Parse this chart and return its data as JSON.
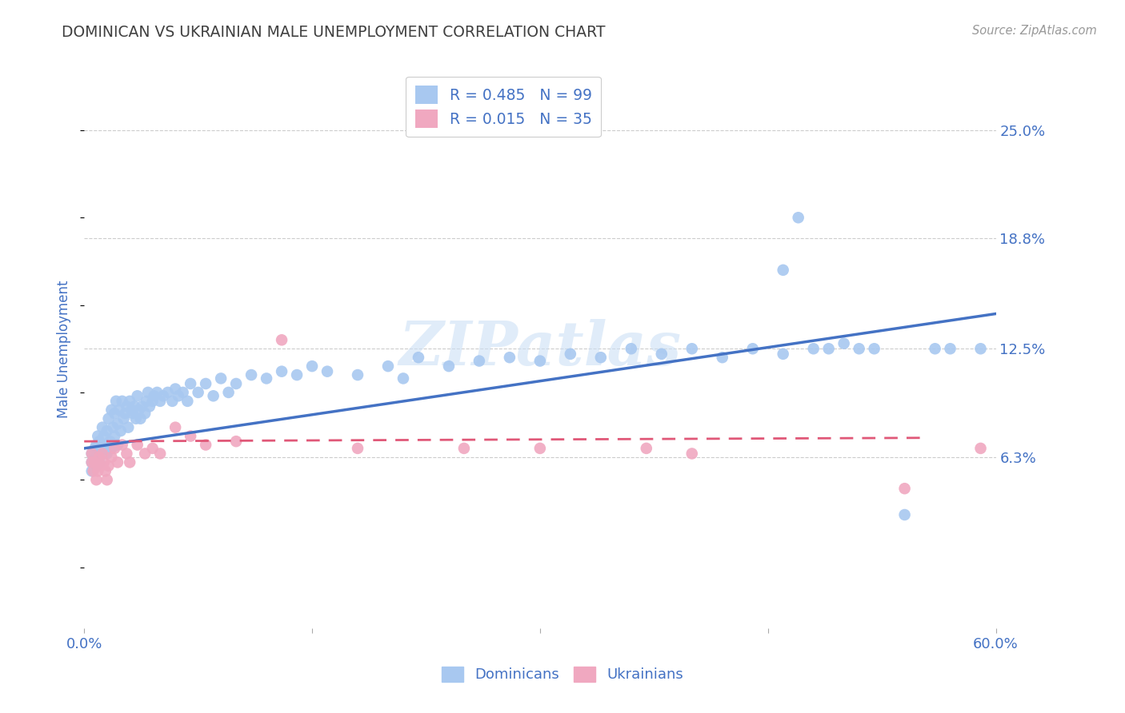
{
  "title": "DOMINICAN VS UKRAINIAN MALE UNEMPLOYMENT CORRELATION CHART",
  "source": "Source: ZipAtlas.com",
  "ylabel": "Male Unemployment",
  "ytick_labels": [
    "25.0%",
    "18.8%",
    "12.5%",
    "6.3%"
  ],
  "ytick_values": [
    0.25,
    0.188,
    0.125,
    0.063
  ],
  "xlim": [
    0.0,
    0.6
  ],
  "ylim": [
    -0.035,
    0.285
  ],
  "legend1_label": "R = 0.485   N = 99",
  "legend2_label": "R = 0.015   N = 35",
  "dominican_color": "#a8c8f0",
  "ukrainian_color": "#f0a8c0",
  "dominican_line_color": "#4472c4",
  "ukrainian_line_color": "#e05878",
  "watermark": "ZIPatlas",
  "watermark_color": "#cce0f5",
  "title_color": "#404040",
  "tick_label_color": "#4472c4",
  "background_color": "#ffffff",
  "grid_color": "#cccccc",
  "dominican_trend_x": [
    0.0,
    0.6
  ],
  "dominican_trend_y": [
    0.068,
    0.145
  ],
  "ukrainian_trend_x": [
    0.0,
    0.55
  ],
  "ukrainian_trend_y": [
    0.072,
    0.074
  ],
  "dominican_x": [
    0.005,
    0.005,
    0.005,
    0.007,
    0.007,
    0.008,
    0.008,
    0.009,
    0.009,
    0.01,
    0.01,
    0.011,
    0.012,
    0.012,
    0.013,
    0.014,
    0.015,
    0.015,
    0.016,
    0.017,
    0.018,
    0.018,
    0.019,
    0.02,
    0.02,
    0.021,
    0.022,
    0.022,
    0.023,
    0.024,
    0.025,
    0.026,
    0.027,
    0.028,
    0.029,
    0.03,
    0.031,
    0.032,
    0.033,
    0.034,
    0.035,
    0.036,
    0.037,
    0.038,
    0.04,
    0.041,
    0.042,
    0.043,
    0.045,
    0.046,
    0.048,
    0.05,
    0.052,
    0.055,
    0.058,
    0.06,
    0.062,
    0.065,
    0.068,
    0.07,
    0.075,
    0.08,
    0.085,
    0.09,
    0.095,
    0.1,
    0.11,
    0.12,
    0.13,
    0.14,
    0.15,
    0.16,
    0.18,
    0.2,
    0.21,
    0.22,
    0.24,
    0.26,
    0.28,
    0.3,
    0.32,
    0.34,
    0.36,
    0.38,
    0.4,
    0.42,
    0.44,
    0.46,
    0.48,
    0.5,
    0.52,
    0.54,
    0.56,
    0.57,
    0.46,
    0.47,
    0.49,
    0.51,
    0.59
  ],
  "dominican_y": [
    0.065,
    0.06,
    0.055,
    0.068,
    0.062,
    0.07,
    0.058,
    0.075,
    0.063,
    0.072,
    0.06,
    0.065,
    0.08,
    0.068,
    0.075,
    0.07,
    0.078,
    0.065,
    0.085,
    0.072,
    0.09,
    0.068,
    0.08,
    0.088,
    0.075,
    0.095,
    0.07,
    0.082,
    0.09,
    0.078,
    0.095,
    0.085,
    0.088,
    0.092,
    0.08,
    0.095,
    0.09,
    0.088,
    0.092,
    0.085,
    0.098,
    0.09,
    0.085,
    0.092,
    0.088,
    0.095,
    0.1,
    0.092,
    0.095,
    0.098,
    0.1,
    0.095,
    0.098,
    0.1,
    0.095,
    0.102,
    0.098,
    0.1,
    0.095,
    0.105,
    0.1,
    0.105,
    0.098,
    0.108,
    0.1,
    0.105,
    0.11,
    0.108,
    0.112,
    0.11,
    0.115,
    0.112,
    0.11,
    0.115,
    0.108,
    0.12,
    0.115,
    0.118,
    0.12,
    0.118,
    0.122,
    0.12,
    0.125,
    0.122,
    0.125,
    0.12,
    0.125,
    0.122,
    0.125,
    0.128,
    0.125,
    0.03,
    0.125,
    0.125,
    0.17,
    0.2,
    0.125,
    0.125,
    0.125
  ],
  "ukrainian_x": [
    0.005,
    0.005,
    0.006,
    0.007,
    0.008,
    0.009,
    0.01,
    0.011,
    0.012,
    0.013,
    0.014,
    0.015,
    0.016,
    0.018,
    0.02,
    0.022,
    0.025,
    0.028,
    0.03,
    0.035,
    0.04,
    0.045,
    0.05,
    0.06,
    0.07,
    0.08,
    0.1,
    0.13,
    0.18,
    0.25,
    0.3,
    0.37,
    0.4,
    0.54,
    0.59
  ],
  "ukrainian_y": [
    0.065,
    0.06,
    0.055,
    0.06,
    0.05,
    0.055,
    0.063,
    0.058,
    0.065,
    0.06,
    0.055,
    0.05,
    0.058,
    0.063,
    0.068,
    0.06,
    0.07,
    0.065,
    0.06,
    0.07,
    0.065,
    0.068,
    0.065,
    0.08,
    0.075,
    0.07,
    0.072,
    0.13,
    0.068,
    0.068,
    0.068,
    0.068,
    0.065,
    0.045,
    0.068
  ]
}
